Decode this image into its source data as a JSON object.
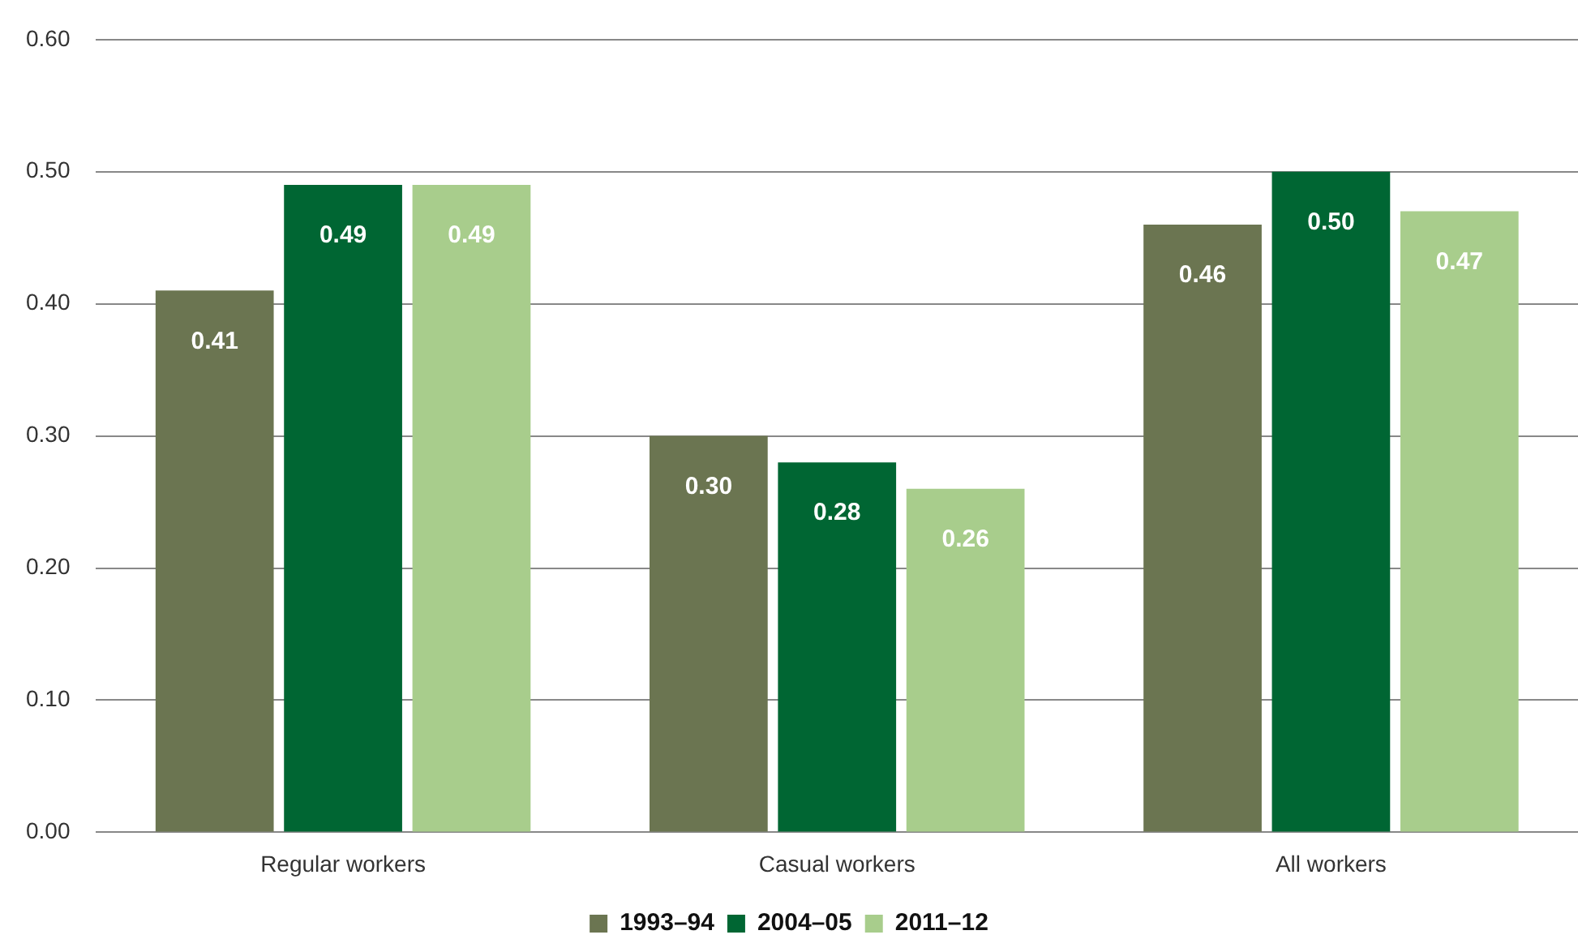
{
  "chart_data": {
    "type": "bar",
    "categories": [
      "Regular workers",
      "Casual workers",
      "All workers"
    ],
    "series": [
      {
        "name": "1993–94",
        "color": "#6b7551",
        "values": [
          0.41,
          0.3,
          0.46
        ],
        "value_labels": [
          "0.41",
          "0.30",
          "0.46"
        ]
      },
      {
        "name": "2004–05",
        "color": "#006633",
        "values": [
          0.49,
          0.28,
          0.5
        ],
        "value_labels": [
          "0.49",
          "0.28",
          "0.50"
        ]
      },
      {
        "name": "2011–12",
        "color": "#a8cd8c",
        "values": [
          0.49,
          0.26,
          0.47
        ],
        "value_labels": [
          "0.49",
          "0.26",
          "0.47"
        ]
      }
    ],
    "ylim": [
      0,
      0.6
    ],
    "yticks": [
      {
        "value": 0,
        "label": "0.00"
      },
      {
        "value": 0.1,
        "label": "0.10"
      },
      {
        "value": 0.2,
        "label": "0.20"
      },
      {
        "value": 0.3,
        "label": "0.30"
      },
      {
        "value": 0.4,
        "label": "0.40"
      },
      {
        "value": 0.5,
        "label": "0.50"
      },
      {
        "value": 0.6,
        "label": "0.60"
      }
    ],
    "grid": "y",
    "legend": "bottom"
  }
}
